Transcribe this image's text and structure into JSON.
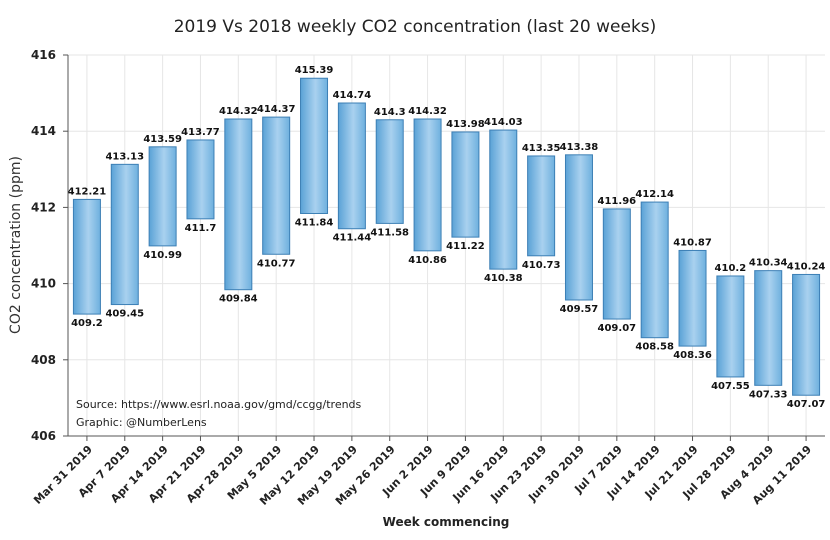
{
  "chart_data": {
    "type": "bar",
    "title": "2019 Vs 2018 weekly CO2 concentration (last 20 weeks)",
    "xlabel": "Week commencing",
    "ylabel": "CO2 concentration (ppm)",
    "ylim": [
      406,
      416
    ],
    "yticks": [
      "406",
      "408",
      "410",
      "412",
      "414",
      "416"
    ],
    "grid": true,
    "categories": [
      "Mar 31 2019",
      "Apr 7 2019",
      "Apr 14 2019",
      "Apr 21 2019",
      "Apr 28 2019",
      "May 5 2019",
      "May 12 2019",
      "May 19 2019",
      "May 26 2019",
      "Jun 2 2019",
      "Jun 9 2019",
      "Jun 16 2019",
      "Jun 23 2019",
      "Jun 30 2019",
      "Jul 7 2019",
      "Jul 14 2019",
      "Jul 21 2019",
      "Jul 28 2019",
      "Aug 4 2019",
      "Aug 11 2019"
    ],
    "series": [
      {
        "values": [
          409.2,
          409.45,
          410.99,
          411.7,
          409.84,
          410.77,
          411.84,
          411.44,
          411.58,
          410.86,
          411.22,
          410.38,
          410.73,
          409.57,
          409.07,
          408.58,
          408.36,
          407.55,
          407.33,
          407.07
        ]
      },
      {
        "values": [
          412.21,
          413.13,
          413.59,
          413.77,
          414.32,
          414.37,
          415.39,
          414.74,
          414.3,
          414.32,
          413.98,
          414.03,
          413.35,
          413.38,
          411.96,
          412.14,
          410.87,
          410.2,
          410.34,
          410.24
        ]
      }
    ],
    "bar_color": "#8fbfe6",
    "annotations": [
      "Source: https://www.esrl.noaa.gov/gmd/ccgg/trends",
      "Graphic: @NumberLens"
    ]
  }
}
